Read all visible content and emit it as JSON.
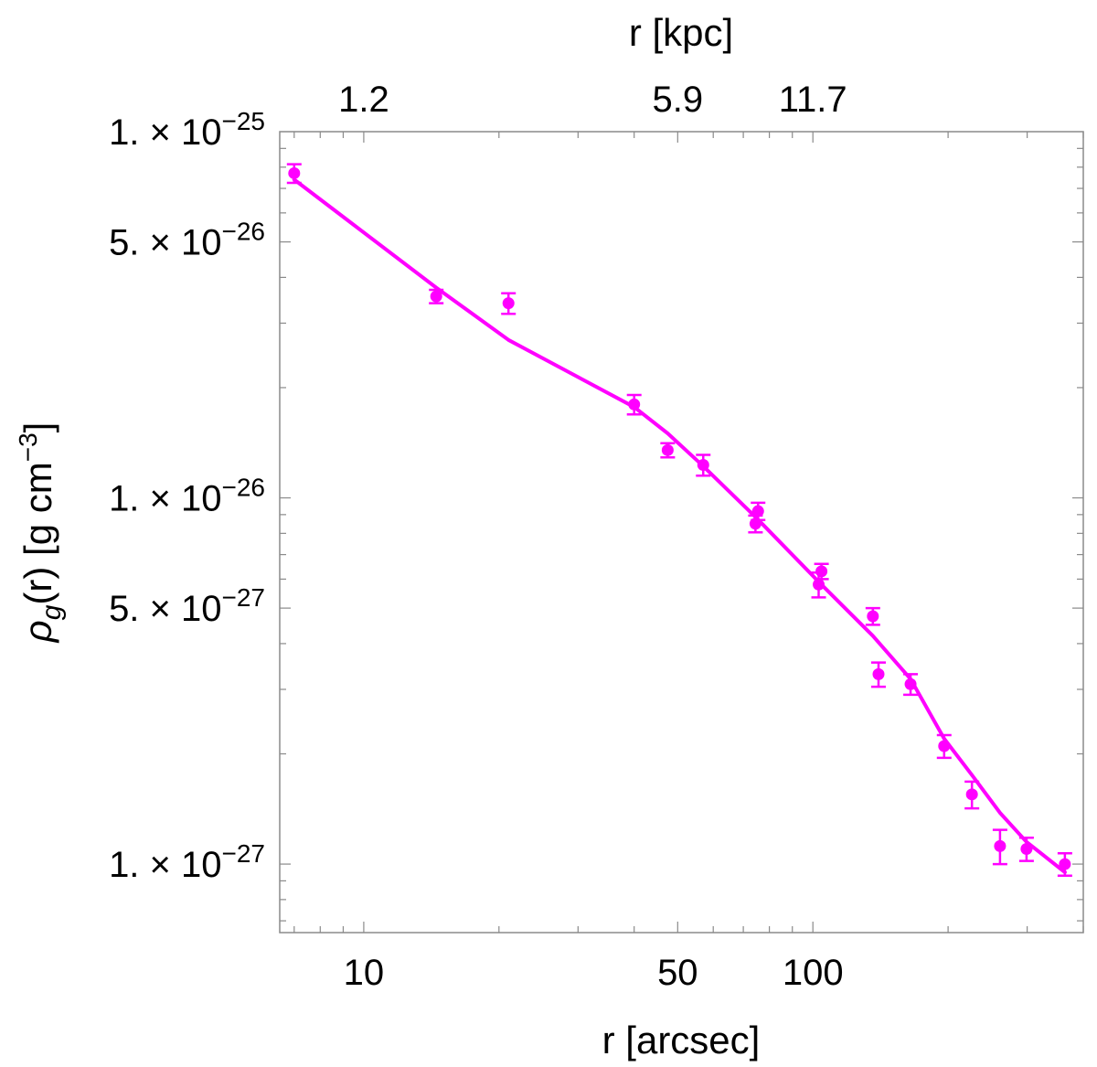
{
  "chart_data": {
    "type": "scatter",
    "xscale": "log",
    "yscale": "log",
    "xlim": [
      6.5,
      400
    ],
    "ylim": [
      6.5e-28,
      1e-25
    ],
    "xlabel": "r [arcsec]",
    "x2label": "r [kpc]",
    "ylabel_parts": {
      "rho": "ρ",
      "sub": "g",
      "mid": "(r) [g cm",
      "sup": "−3",
      "end": "]"
    },
    "x_ticks": [
      {
        "value": 10,
        "label": "10"
      },
      {
        "value": 50,
        "label": "50"
      },
      {
        "value": 100,
        "label": "100"
      }
    ],
    "x2_ticks": [
      {
        "value": 10,
        "label": "1.2"
      },
      {
        "value": 50,
        "label": "5.9"
      },
      {
        "value": 100,
        "label": "11.7"
      }
    ],
    "y_ticks": [
      {
        "value": 1e-25,
        "mantissa": "1. × 10",
        "exponent": "−25"
      },
      {
        "value": 5e-26,
        "mantissa": "5. × 10",
        "exponent": "−26"
      },
      {
        "value": 1e-26,
        "mantissa": "1. × 10",
        "exponent": "−26"
      },
      {
        "value": 5e-27,
        "mantissa": "5. × 10",
        "exponent": "−27"
      },
      {
        "value": 1e-27,
        "mantissa": "1. × 10",
        "exponent": "−27"
      }
    ],
    "grid": false,
    "color": "#ff00ff",
    "series": [
      {
        "kind": "points_with_errorbars",
        "x": [
          7.0,
          14.5,
          21.0,
          40.0,
          47.5,
          57.0,
          74.5,
          75.5,
          103.0,
          104.5,
          136.0,
          140.0,
          165.0,
          196.0,
          226.0,
          261.0,
          299.0,
          364.0
        ],
        "y": [
          7.7e-26,
          3.55e-26,
          3.4e-26,
          1.8e-26,
          1.35e-26,
          1.23e-26,
          8.5e-27,
          9.2e-27,
          5.8e-27,
          6.3e-27,
          4.75e-27,
          3.3e-27,
          3.1e-27,
          2.1e-27,
          1.55e-27,
          1.12e-27,
          1.1e-27,
          1e-27
        ],
        "y_err": [
          4.5e-27,
          1.5e-27,
          2.2e-27,
          1.1e-27,
          6e-28,
          8e-28,
          4.5e-28,
          5e-28,
          4.5e-28,
          3e-28,
          2.5e-28,
          2.5e-28,
          2e-28,
          1.5e-28,
          1.3e-28,
          1.2e-28,
          8e-29,
          7e-29
        ]
      },
      {
        "kind": "model_line",
        "x": [
          7.0,
          14.5,
          21.0,
          40.0,
          47.5,
          57.0,
          75.0,
          103.0,
          136.0,
          165.0,
          196.0,
          226.0,
          261.0,
          299.0,
          364.0
        ],
        "y": [
          7.4e-26,
          3.75e-26,
          2.7e-26,
          1.77e-26,
          1.5e-26,
          1.22e-26,
          8.8e-27,
          5.9e-27,
          4.2e-27,
          3.2e-27,
          2.2e-27,
          1.75e-27,
          1.38e-27,
          1.15e-27,
          9.5e-28
        ]
      }
    ]
  }
}
